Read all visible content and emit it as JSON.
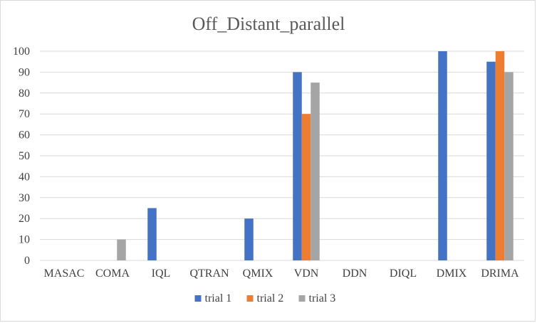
{
  "chart_data": {
    "type": "bar",
    "title": "Off_Distant_parallel",
    "categories": [
      "MASAC",
      "COMA",
      "IQL",
      "QTRAN",
      "QMIX",
      "VDN",
      "DDN",
      "DIQL",
      "DMIX",
      "DRIMA"
    ],
    "series": [
      {
        "name": "trial 1",
        "color": "#4472c4",
        "values": [
          0,
          0,
          25,
          0,
          20,
          90,
          0,
          0,
          100,
          95
        ]
      },
      {
        "name": "trial 2",
        "color": "#ed7d31",
        "values": [
          0,
          0,
          0,
          0,
          0,
          70,
          0,
          0,
          0,
          100
        ]
      },
      {
        "name": "trial 3",
        "color": "#a5a5a5",
        "values": [
          0,
          10,
          0,
          0,
          0,
          85,
          0,
          0,
          0,
          90
        ]
      }
    ],
    "yticks": [
      "0",
      "10",
      "20",
      "30",
      "40",
      "50",
      "60",
      "70",
      "80",
      "90",
      "100"
    ],
    "ylim": [
      0,
      100
    ],
    "grid": true,
    "legend": "bottom"
  }
}
